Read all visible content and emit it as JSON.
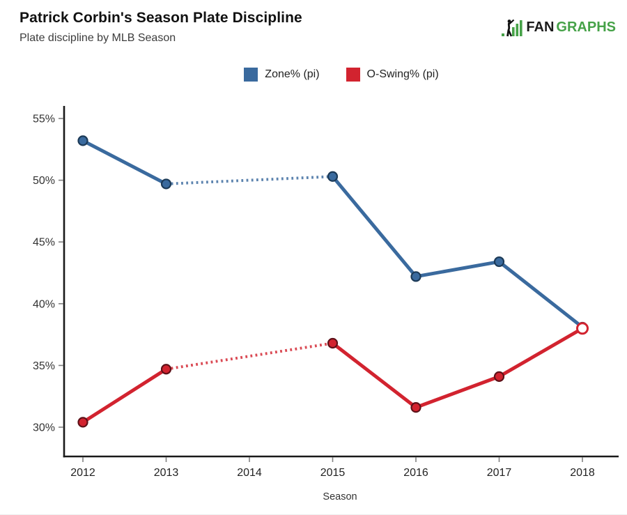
{
  "header": {
    "title": "Patrick Corbin's Season Plate Discipline",
    "subtitle": "Plate discipline by MLB Season"
  },
  "logo": {
    "icon": "fangraphs-batter-bars-icon",
    "text_dark": "FAN",
    "text_green": "GRAPHS",
    "green": "#46a248",
    "dark": "#1b1b1b"
  },
  "chart_data": {
    "type": "line",
    "title": "Patrick Corbin's Season Plate Discipline",
    "subtitle": "Plate discipline by MLB Season",
    "xlabel": "Season",
    "ylabel": "",
    "categories": [
      2012,
      2013,
      2014,
      2015,
      2016,
      2017,
      2018
    ],
    "y_ticks": [
      30,
      35,
      40,
      45,
      50,
      55
    ],
    "y_tick_suffix": "%",
    "ylim": [
      28.7,
      56.1
    ],
    "grid": false,
    "legend_position": "top-center",
    "note": "2014 season missing; gaps bridged with dotted line segments",
    "series": [
      {
        "name": "Zone% (pi)",
        "color": "#3a6a9e",
        "marker_edge": "#1c3a57",
        "values": [
          53.2,
          49.7,
          null,
          50.3,
          42.2,
          43.4,
          38.1
        ],
        "end_marker": "covered"
      },
      {
        "name": "O-Swing% (pi)",
        "color": "#d2232f",
        "marker_edge": "#5e1118",
        "values": [
          30.4,
          34.7,
          null,
          36.8,
          31.6,
          34.1,
          38.0
        ],
        "end_marker": "open-white"
      }
    ]
  }
}
